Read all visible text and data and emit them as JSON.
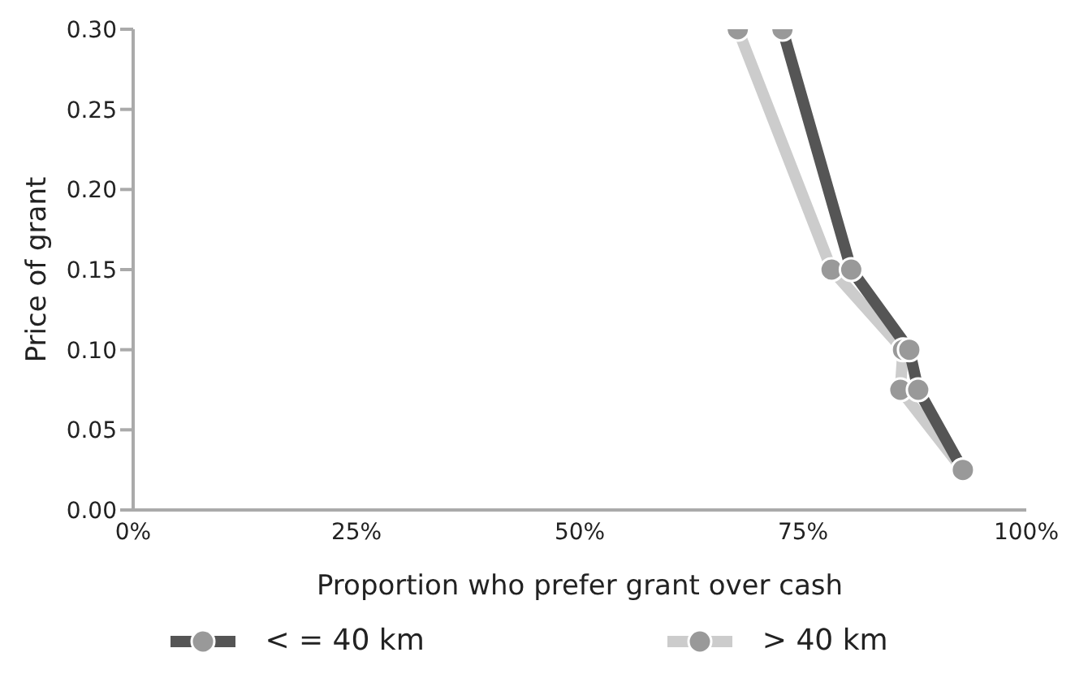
{
  "chart_data": {
    "type": "line",
    "xlabel": "Proportion who prefer grant over cash",
    "ylabel": "Price of grant",
    "xlim": [
      0,
      100
    ],
    "xticks": [
      {
        "value": 0,
        "label": "0%"
      },
      {
        "value": 25,
        "label": "25%"
      },
      {
        "value": 50,
        "label": "50%"
      },
      {
        "value": 75,
        "label": "75%"
      },
      {
        "value": 100,
        "label": "100%"
      }
    ],
    "ylim": [
      0,
      0.3
    ],
    "yticks": [
      {
        "value": 0,
        "label": "0.00"
      },
      {
        "value": 0.05,
        "label": "0.05"
      },
      {
        "value": 0.1,
        "label": "0.10"
      },
      {
        "value": 0.15,
        "label": "0.15"
      },
      {
        "value": 0.2,
        "label": "0.20"
      },
      {
        "value": 0.25,
        "label": "0.25"
      },
      {
        "value": 0.3,
        "label": "0.30"
      }
    ],
    "series": [
      {
        "name": "< = 40 km",
        "color": "#555555",
        "x": [
          72.7,
          80.4,
          86.9,
          87.9,
          92.9
        ],
        "values": [
          0.3,
          0.15,
          0.1,
          0.075,
          0.025
        ]
      },
      {
        "name": "> 40 km",
        "color": "#cccccc",
        "x": [
          67.7,
          78.2,
          86.2,
          85.9,
          92.9
        ],
        "values": [
          0.3,
          0.15,
          0.1,
          0.075,
          0.025
        ]
      }
    ],
    "marker": "circle",
    "grid": false,
    "legend": "bottom"
  }
}
